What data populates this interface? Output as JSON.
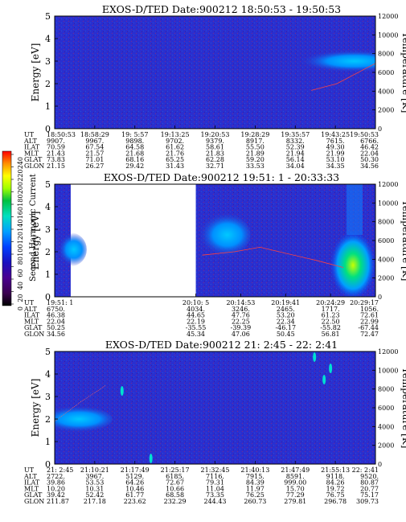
{
  "colorbar": {
    "label": "Second Harmonic Current",
    "ticks": [
      "0",
      "20",
      "40",
      "60",
      "80",
      "100",
      "120",
      "140",
      "160",
      "180",
      "200",
      "220",
      "240"
    ]
  },
  "chart_data": [
    {
      "type": "heatmap",
      "title": "EXOS-D/TED   Date:900212  18:50:53 - 19:50:53",
      "ylabel": "Energy [eV]",
      "y2label": "Temperature [K]",
      "ylim": [
        0,
        5
      ],
      "y2lim": [
        0,
        12000
      ],
      "yticks": [
        "0",
        "1",
        "2",
        "3",
        "4",
        "5"
      ],
      "y2ticks": [
        "0",
        "2000",
        "4000",
        "6000",
        "8000",
        "10000",
        "12000"
      ],
      "rows": {
        "UT": [
          "18:50:53",
          "18:58:29",
          "19: 5:57",
          "19:13:25",
          "19:20:53",
          "19:28:29",
          "19:35:57",
          "19:43:25",
          "19:50:53"
        ],
        "ALT": [
          "9907.",
          "9967.",
          "9898.",
          "9702.",
          "9379.",
          "8917.",
          "8332.",
          "7615.",
          "6766."
        ],
        "ILAT": [
          "70.59",
          "67.54",
          "64.58",
          "61.62",
          "58.61",
          "55.50",
          "52.39",
          "49.30",
          "46.42"
        ],
        "MLT": [
          "21.43",
          "21.57",
          "21.68",
          "21.76",
          "21.83",
          "21.89",
          "21.94",
          "21.99",
          "22.04"
        ],
        "GLAT": [
          "73.83",
          "71.01",
          "68.16",
          "65.25",
          "62.28",
          "59.20",
          "56.14",
          "53.10",
          "50.30"
        ],
        "GLON": [
          "21.15",
          "26.27",
          "29.42",
          "31.43",
          "32.71",
          "33.53",
          "34.04",
          "34.35",
          "34.56"
        ]
      }
    },
    {
      "type": "heatmap",
      "title": "EXOS-D/TED   Date:900212  19:51: 1 - 20:33:33",
      "ylabel": "Energy [eV]",
      "y2label": "Temperature [K]",
      "ylim": [
        0,
        5
      ],
      "y2lim": [
        0,
        12000
      ],
      "yticks": [
        "0",
        "1",
        "2",
        "3",
        "4",
        "5"
      ],
      "y2ticks": [
        "0",
        "2000",
        "4000",
        "6000",
        "8000",
        "10000",
        "12000"
      ],
      "rows": {
        "UT": [
          "19:51: 1",
          "20:10: 5",
          "20:14:53",
          "20:19:41",
          "20:24:29",
          "20:29:17"
        ],
        "ALT": [
          "6750.",
          "4034.",
          "3246.",
          "2465.",
          "1717.",
          "1056."
        ],
        "ILAT": [
          "46.38",
          "44.65",
          "47.76",
          "53.20",
          "61.23",
          "72.61"
        ],
        "MLT": [
          "22.04",
          "22.19",
          "22.25",
          "22.34",
          "22.50",
          "22.99"
        ],
        "GLAT": [
          "50.25",
          "-35.55",
          "-39.39",
          "-46.17",
          "-55.82",
          "-67.44"
        ],
        "GLON": [
          "34.56",
          "45.34",
          "47.06",
          "50.45",
          "56.81",
          "72.47"
        ]
      }
    },
    {
      "type": "heatmap",
      "title": "EXOS-D/TED   Date:900212  21: 2:45 - 22: 2:41",
      "ylabel": "Energy [eV]",
      "y2label": "Temperature [K]",
      "ylim": [
        0,
        5
      ],
      "y2lim": [
        0,
        12000
      ],
      "yticks": [
        "0",
        "1",
        "2",
        "3",
        "4",
        "5"
      ],
      "y2ticks": [
        "0",
        "2000",
        "4000",
        "6000",
        "8000",
        "10000",
        "12000"
      ],
      "rows": {
        "UT": [
          "21: 2:45",
          "21:10:21",
          "21:17:49",
          "21:25:17",
          "21:32:45",
          "21:40:13",
          "21:47:49",
          "21:55:13",
          "22: 2:41"
        ],
        "ALT": [
          "2722.",
          "3967.",
          "5129.",
          "6185.",
          "7116.",
          "7915.",
          "8591.",
          "9118.",
          "9520."
        ],
        "ILAT": [
          "39.86",
          "53.53",
          "64.26",
          "72.67",
          "79.31",
          "84.39",
          "999.00",
          "84.26",
          "80.87"
        ],
        "MLT": [
          "10.20",
          "10.31",
          "10.46",
          "10.66",
          "11.04",
          "11.97",
          "15.70",
          "19.72",
          "20.77"
        ],
        "GLAT": [
          "39.42",
          "52.42",
          "61.77",
          "68.58",
          "73.35",
          "76.25",
          "77.29",
          "76.75",
          "75.17"
        ],
        "GLON": [
          "211.87",
          "217.18",
          "223.62",
          "232.29",
          "244.43",
          "260.73",
          "279.81",
          "296.78",
          "309.73"
        ]
      }
    }
  ]
}
